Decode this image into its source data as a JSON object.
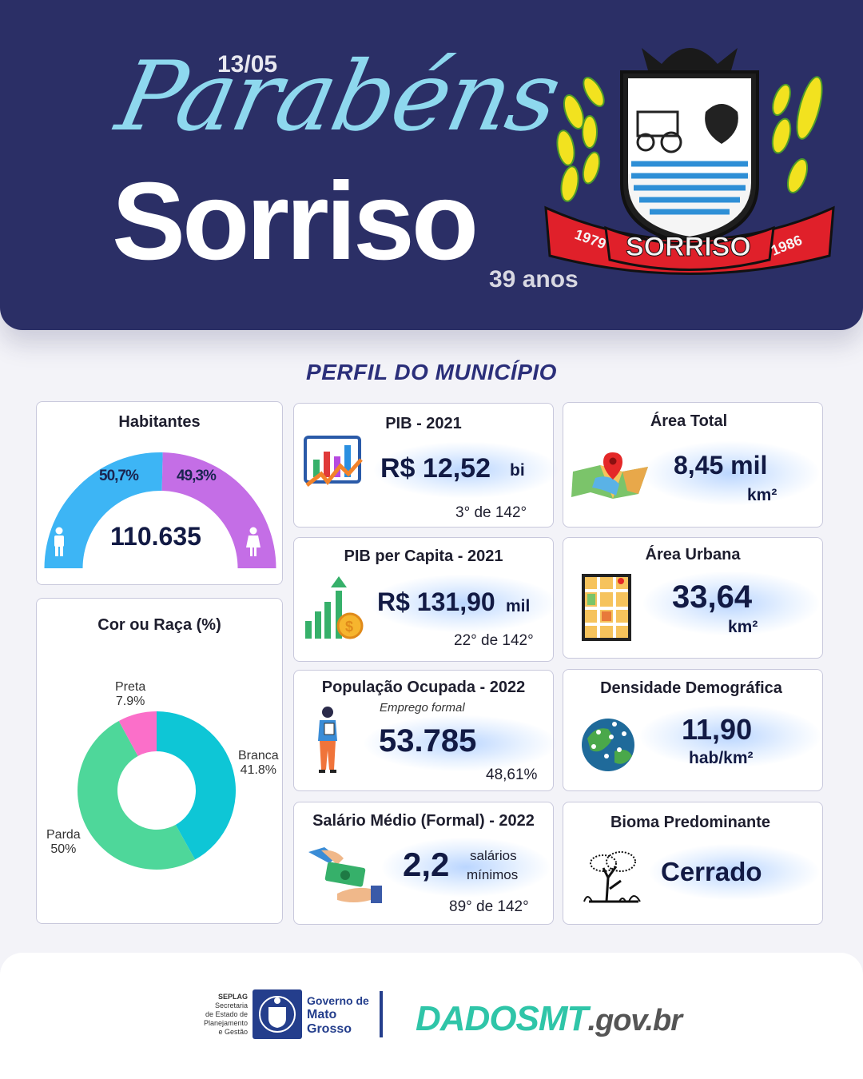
{
  "header": {
    "date": "13/05",
    "greeting": "Parabéns",
    "city": "Sorriso",
    "age": "39 anos",
    "crest": {
      "year_left": "1979",
      "name": "SORRISO",
      "year_right": "1986"
    }
  },
  "section_title": "PERFIL DO MUNICÍPIO",
  "habitantes": {
    "title": "Habitantes",
    "total": "110.635",
    "male_pct_label": "50,7%",
    "female_pct_label": "49,3%",
    "male_pct": 50.7,
    "female_pct": 49.3,
    "male_color": "#3db5f5",
    "female_color": "#c46ee6",
    "male_icon": "man-icon",
    "female_icon": "woman-icon"
  },
  "cor_raca": {
    "title": "Cor ou Raça (%)",
    "chart_data": {
      "type": "pie",
      "title": "Cor ou Raça (%)",
      "donut": true,
      "slices": [
        {
          "name": "Branca",
          "value": 41.8,
          "label": "41.8%",
          "color": "#0ec6d6"
        },
        {
          "name": "Parda",
          "value": 50.0,
          "label": "50%",
          "color": "#4ed79a"
        },
        {
          "name": "Preta",
          "value": 7.9,
          "label": "7.9%",
          "color": "#fb6fc9"
        }
      ]
    }
  },
  "pib": {
    "title": "PIB - 2021",
    "value": "R$ 12,52",
    "unit": "bi",
    "rank": "3° de 142°",
    "icon": "bar-chart-icon"
  },
  "pib_capita": {
    "title": "PIB per Capita - 2021",
    "value": "R$ 131,90",
    "unit": "mil",
    "rank": "22° de 142°",
    "icon": "growth-coin-icon"
  },
  "populacao": {
    "title": "População  Ocupada - 2022",
    "subtitle": "Emprego formal",
    "value": "53.785",
    "pct": "48,61%",
    "icon": "worker-icon"
  },
  "salario": {
    "title": "Salário Médio (Formal) - 2022",
    "value": "2,2",
    "unit_line1": "salários",
    "unit_line2": "mínimos",
    "rank": "89° de 142°",
    "icon": "money-hand-icon"
  },
  "area_total": {
    "title": "Área Total",
    "value": "8,45 mil",
    "unit": "km²",
    "icon": "map-pin-icon"
  },
  "area_urbana": {
    "title": "Área Urbana",
    "value": "33,64",
    "unit": "km²",
    "icon": "city-map-icon"
  },
  "densidade": {
    "title": "Densidade Demográfica",
    "value": "11,90",
    "unit": "hab/km²",
    "icon": "globe-people-icon"
  },
  "bioma": {
    "title": "Bioma Predominante",
    "value": "Cerrado",
    "icon": "tree-icon"
  },
  "footer": {
    "seplag_lines": [
      "SEPLAG",
      "Secretaria",
      "de Estado de",
      "Planejamento",
      "e Gestão"
    ],
    "gov_lines": [
      "Governo de",
      "Mato",
      "Grosso"
    ],
    "dados_main": "DADOSMT",
    "dados_suffix": ".gov.br"
  }
}
